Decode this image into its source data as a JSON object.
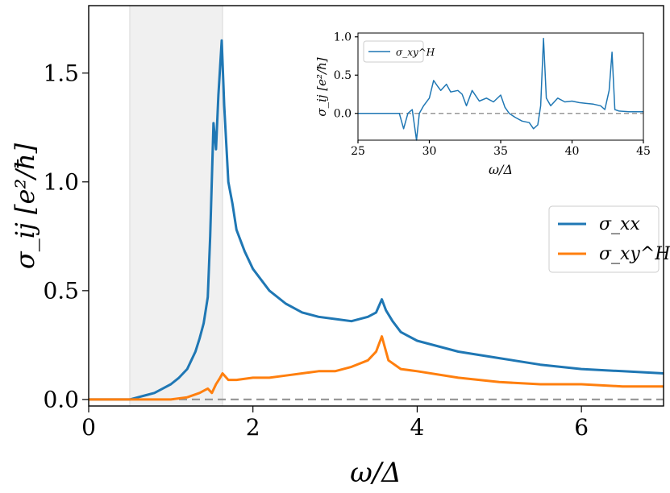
{
  "chart_data": [
    {
      "type": "line",
      "title": "",
      "xlabel": "ω/Δ",
      "ylabel": "σ_ij [e²/ħ]",
      "xlim": [
        0,
        7
      ],
      "ylim": [
        -0.03,
        1.81
      ],
      "xticks": [
        "0",
        "2",
        "4",
        "6"
      ],
      "yticks": [
        "0.0",
        "0.5",
        "1.0",
        "1.5"
      ],
      "shaded_region": [
        0.5,
        1.63
      ],
      "reference_line": 0,
      "legend": {
        "placement": "center-right",
        "entries": [
          "σ_xx",
          "σ_xy^H"
        ]
      },
      "series": [
        {
          "name": "σ_xx",
          "color": "#1f77b4",
          "x": [
            0,
            0.3,
            0.5,
            0.6,
            0.7,
            0.8,
            0.9,
            1.0,
            1.1,
            1.2,
            1.25,
            1.3,
            1.35,
            1.4,
            1.45,
            1.48,
            1.52,
            1.55,
            1.58,
            1.62,
            1.65,
            1.7,
            1.75,
            1.8,
            1.9,
            2.0,
            2.2,
            2.4,
            2.6,
            2.8,
            3.0,
            3.2,
            3.4,
            3.5,
            3.57,
            3.62,
            3.7,
            3.8,
            4.0,
            4.5,
            5.0,
            5.5,
            6.0,
            6.5,
            7.0
          ],
          "values": [
            0.0,
            0.0,
            0.0,
            0.01,
            0.02,
            0.03,
            0.05,
            0.07,
            0.1,
            0.14,
            0.18,
            0.22,
            0.28,
            0.35,
            0.47,
            0.75,
            1.27,
            1.15,
            1.4,
            1.65,
            1.35,
            1.0,
            0.9,
            0.78,
            0.68,
            0.6,
            0.5,
            0.44,
            0.4,
            0.38,
            0.37,
            0.36,
            0.38,
            0.4,
            0.46,
            0.41,
            0.36,
            0.31,
            0.27,
            0.22,
            0.19,
            0.16,
            0.14,
            0.13,
            0.12
          ]
        },
        {
          "name": "σ_xy^H",
          "color": "#ff7f0e",
          "x": [
            0,
            0.5,
            0.8,
            1.0,
            1.2,
            1.35,
            1.45,
            1.5,
            1.55,
            1.6,
            1.63,
            1.7,
            1.8,
            2.0,
            2.2,
            2.4,
            2.6,
            2.8,
            3.0,
            3.2,
            3.4,
            3.5,
            3.57,
            3.65,
            3.8,
            4.0,
            4.5,
            5.0,
            5.5,
            6.0,
            6.5,
            7.0
          ],
          "values": [
            0.0,
            0.0,
            0.0,
            0.0,
            0.01,
            0.03,
            0.05,
            0.03,
            0.07,
            0.1,
            0.12,
            0.09,
            0.09,
            0.1,
            0.1,
            0.11,
            0.12,
            0.13,
            0.13,
            0.15,
            0.18,
            0.22,
            0.29,
            0.18,
            0.14,
            0.13,
            0.1,
            0.08,
            0.07,
            0.07,
            0.06,
            0.06
          ]
        }
      ]
    },
    {
      "type": "line",
      "title": "",
      "xlabel": "ω/Δ",
      "ylabel": "σ_ij [e²/ħ]",
      "xlim": [
        25,
        45
      ],
      "ylim": [
        -0.35,
        1.05
      ],
      "xticks": [
        "25",
        "30",
        "35",
        "40",
        "45"
      ],
      "yticks": [
        "0.0",
        "0.5",
        "1.0"
      ],
      "reference_line": 0,
      "legend": {
        "placement": "top-left",
        "entries": [
          "σ_xy^H"
        ]
      },
      "series": [
        {
          "name": "σ_xy^H",
          "color": "#1f77b4",
          "x": [
            25,
            27.9,
            28.2,
            28.5,
            28.8,
            29.1,
            29.3,
            29.6,
            30.0,
            30.3,
            30.6,
            30.8,
            31.2,
            31.5,
            32.0,
            32.3,
            32.6,
            33.0,
            33.5,
            34.0,
            34.5,
            35.0,
            35.3,
            35.6,
            36.0,
            36.5,
            37.0,
            37.3,
            37.6,
            37.8,
            38.0,
            38.2,
            38.5,
            39.0,
            39.5,
            40.0,
            40.5,
            41.0,
            41.5,
            42.0,
            42.3,
            42.6,
            42.8,
            43.0,
            43.3,
            44.0,
            45.0
          ],
          "values": [
            0.0,
            0.0,
            -0.2,
            0.0,
            0.05,
            -0.35,
            0.0,
            0.1,
            0.2,
            0.43,
            0.35,
            0.3,
            0.38,
            0.28,
            0.3,
            0.25,
            0.1,
            0.3,
            0.16,
            0.2,
            0.15,
            0.24,
            0.08,
            0.0,
            -0.05,
            -0.1,
            -0.12,
            -0.2,
            -0.15,
            0.1,
            0.98,
            0.2,
            0.1,
            0.2,
            0.15,
            0.16,
            0.14,
            0.13,
            0.12,
            0.1,
            0.05,
            0.3,
            0.8,
            0.05,
            0.03,
            0.02,
            0.02
          ]
        }
      ]
    }
  ]
}
